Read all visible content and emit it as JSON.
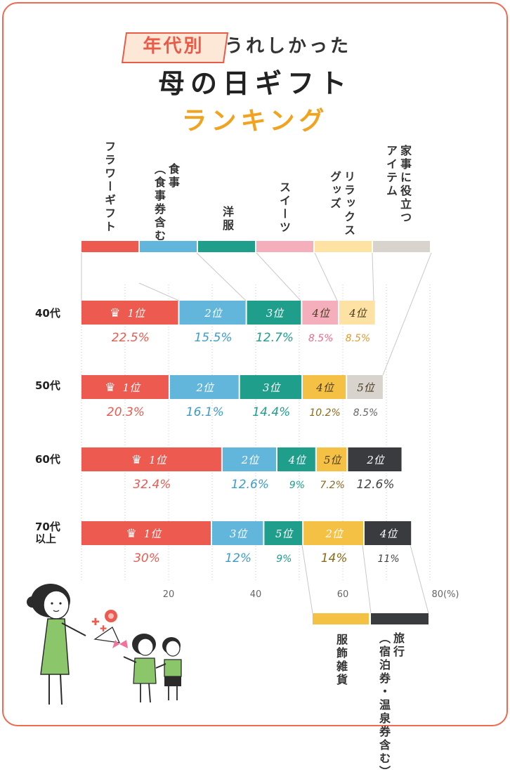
{
  "title": {
    "badge": "年代別",
    "line1": "うれしかった",
    "line2": "母の日ギフト",
    "line3": "ランキング"
  },
  "chart_data": {
    "type": "bar",
    "stacked": true,
    "orientation": "horizontal",
    "xlim": [
      0,
      80
    ],
    "x_ticks": [
      "20",
      "40",
      "60",
      "80(%)"
    ],
    "legend_top": [
      {
        "label": "フラワーギフト",
        "color": "#ec5a50"
      },
      {
        "label": "食事\n（食事券含む）",
        "color": "#62b6dc"
      },
      {
        "label": "洋服",
        "color": "#1f9e8c"
      },
      {
        "label": "スイーツ",
        "color": "#f5aebb"
      },
      {
        "label": "リラックス\nグッズ",
        "color": "#fde2a4"
      },
      {
        "label": "家事に役立つ\nアイテム",
        "color": "#d8d4cd"
      }
    ],
    "legend_bottom": [
      {
        "label": "服飾雑貨",
        "color": "#f4c145"
      },
      {
        "label": "旅行\n（宿泊券・温泉券含む）",
        "color": "#3a3b3e"
      }
    ],
    "rows": [
      {
        "label": "40代",
        "segments": [
          {
            "category": "フラワーギフト",
            "rank": "1位",
            "value": 22.5,
            "label": "22.5%",
            "color": "#ec5a50",
            "text_color": "#ec5a50",
            "crown": true
          },
          {
            "category": "食事",
            "rank": "2位",
            "value": 15.5,
            "label": "15.5%",
            "color": "#62b6dc",
            "text_color": "#3d9ccb"
          },
          {
            "category": "洋服",
            "rank": "3位",
            "value": 12.7,
            "label": "12.7%",
            "color": "#1f9e8c",
            "text_color": "#1f9e8c"
          },
          {
            "category": "スイーツ",
            "rank": "4位",
            "value": 8.5,
            "label": "8.5%",
            "color": "#f5aebb",
            "text_color": "#ea6a86",
            "dark": true
          },
          {
            "category": "リラックスグッズ",
            "rank": "4位",
            "value": 8.5,
            "label": "8.5%",
            "color": "#fde2a4",
            "text_color": "#e09a2a",
            "dark": true
          }
        ]
      },
      {
        "label": "50代",
        "segments": [
          {
            "category": "フラワーギフト",
            "rank": "1位",
            "value": 20.3,
            "label": "20.3%",
            "color": "#ec5a50",
            "text_color": "#ec5a50",
            "crown": true
          },
          {
            "category": "食事",
            "rank": "2位",
            "value": 16.1,
            "label": "16.1%",
            "color": "#62b6dc",
            "text_color": "#3d9ccb"
          },
          {
            "category": "洋服",
            "rank": "3位",
            "value": 14.4,
            "label": "14.4%",
            "color": "#1f9e8c",
            "text_color": "#1f9e8c"
          },
          {
            "category": "服飾雑貨",
            "rank": "4位",
            "value": 10.2,
            "label": "10.2%",
            "color": "#f4c145",
            "text_color": "#8a6a1a",
            "dark": true
          },
          {
            "category": "家事に役立つアイテム",
            "rank": "5位",
            "value": 8.5,
            "label": "8.5%",
            "color": "#d8d4cd",
            "text_color": "#666666",
            "dark": true
          }
        ]
      },
      {
        "label": "60代",
        "segments": [
          {
            "category": "フラワーギフト",
            "rank": "1位",
            "value": 32.4,
            "label": "32.4%",
            "color": "#ec5a50",
            "text_color": "#ec5a50",
            "crown": true
          },
          {
            "category": "食事",
            "rank": "2位",
            "value": 12.6,
            "label": "12.6%",
            "color": "#62b6dc",
            "text_color": "#3d9ccb"
          },
          {
            "category": "洋服",
            "rank": "4位",
            "value": 9,
            "label": "9%",
            "color": "#1f9e8c",
            "text_color": "#1f9e8c"
          },
          {
            "category": "服飾雑貨",
            "rank": "5位",
            "value": 7.2,
            "label": "7.2%",
            "color": "#f4c145",
            "text_color": "#8a6a1a",
            "dark": true
          },
          {
            "category": "旅行",
            "rank": "2位",
            "value": 12.6,
            "label": "12.6%",
            "color": "#3a3b3e",
            "text_color": "#444444"
          }
        ]
      },
      {
        "label": "70代",
        "label2": "以上",
        "segments": [
          {
            "category": "フラワーギフト",
            "rank": "1位",
            "value": 30,
            "label": "30%",
            "color": "#ec5a50",
            "text_color": "#ec5a50",
            "crown": true
          },
          {
            "category": "食事",
            "rank": "3位",
            "value": 12,
            "label": "12%",
            "color": "#62b6dc",
            "text_color": "#3d9ccb"
          },
          {
            "category": "洋服",
            "rank": "5位",
            "value": 9,
            "label": "9%",
            "color": "#1f9e8c",
            "text_color": "#1f9e8c"
          },
          {
            "category": "服飾雑貨",
            "rank": "2位",
            "value": 14,
            "label": "14%",
            "color": "#f4c145",
            "text_color": "#8a6a1a"
          },
          {
            "category": "旅行",
            "rank": "4位",
            "value": 11,
            "label": "11%",
            "color": "#3a3b3e",
            "text_color": "#444444"
          }
        ]
      }
    ]
  }
}
